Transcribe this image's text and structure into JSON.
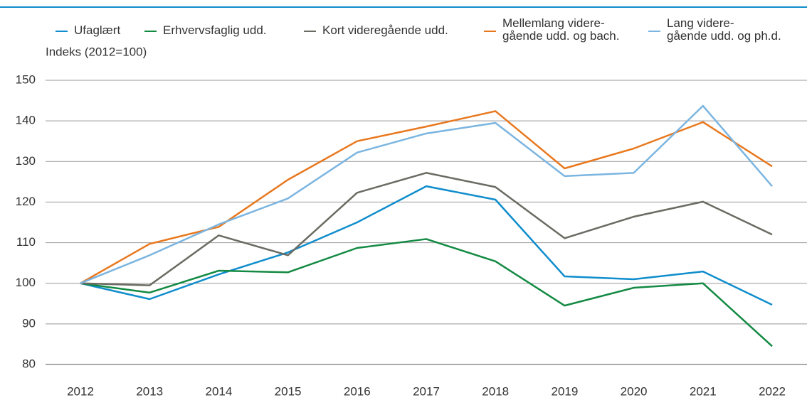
{
  "chart_data": {
    "type": "line",
    "y_label": "Indeks (2012=100)",
    "categories": [
      "2012",
      "2013",
      "2014",
      "2015",
      "2016",
      "2017",
      "2018",
      "2019",
      "2020",
      "2021",
      "2022"
    ],
    "series": [
      {
        "name": "Ufaglært",
        "color": "#0f8dcc",
        "values": [
          100,
          96.1,
          102.2,
          107.6,
          115,
          123.9,
          120.6,
          101.7,
          101,
          102.9,
          94.7
        ]
      },
      {
        "name": "Erhvervsfaglig udd.",
        "color": "#138a43",
        "values": [
          100,
          97.7,
          103.1,
          102.7,
          108.7,
          110.9,
          105.4,
          94.5,
          98.9,
          100,
          84.5
        ]
      },
      {
        "name": "Kort videregående udd.",
        "color": "#6b6b63",
        "values": [
          100,
          99.5,
          111.8,
          106.9,
          122.3,
          127.2,
          123.7,
          111.1,
          116.4,
          120.1,
          112
        ]
      },
      {
        "name": "Mellemlang videre-\ngående udd. og bach.",
        "color": "#e8781e",
        "values": [
          100,
          109.7,
          113.9,
          125.5,
          135,
          138.6,
          142.4,
          128.3,
          133.2,
          139.7,
          128.8
        ]
      },
      {
        "name": "Lang videre-\ngående udd. og ph.d.",
        "color": "#7bb5e0",
        "values": [
          100,
          106.9,
          114.5,
          120.9,
          132.2,
          136.9,
          139.5,
          126.4,
          127.2,
          143.7,
          123.9
        ]
      }
    ],
    "ylim": [
      80,
      150
    ],
    "yticks": [
      80,
      90,
      100,
      110,
      120,
      130,
      140,
      150
    ],
    "grid": true
  }
}
